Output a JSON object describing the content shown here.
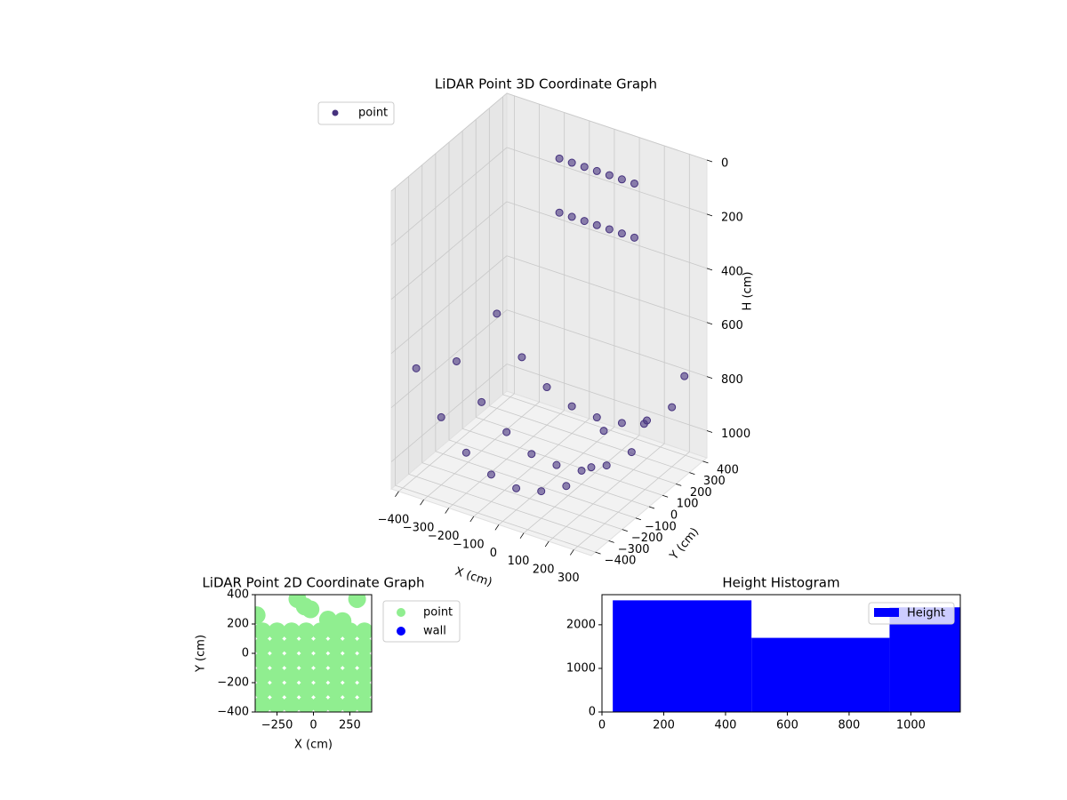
{
  "chart_data": [
    {
      "type": "scatter3d",
      "title": "LiDAR Point 3D Coordinate Graph",
      "xlabel": "X (cm)",
      "ylabel": "Y (cm)",
      "zlabel": "H (cm)",
      "legend": "upper left",
      "xlim": [
        -430,
        370
      ],
      "ylim": [
        -430,
        430
      ],
      "zlim": [
        1100,
        0
      ],
      "xticks": [
        {
          "value": -400,
          "label": "−400"
        },
        {
          "value": -300,
          "label": "−300"
        },
        {
          "value": -200,
          "label": "−200"
        },
        {
          "value": -100,
          "label": "−100"
        },
        0,
        100,
        200,
        300
      ],
      "yticks": [
        {
          "value": -400,
          "label": "−400"
        },
        {
          "value": -300,
          "label": "−300"
        },
        {
          "value": -200,
          "label": "−200"
        },
        {
          "value": -100,
          "label": "−100"
        },
        0,
        100,
        200,
        300,
        400
      ],
      "zticks": [
        0,
        200,
        400,
        600,
        800,
        1000
      ],
      "series": [
        {
          "name": "point",
          "color": "#46327e",
          "x": [
            -400,
            -300,
            -200,
            -100,
            0,
            100,
            200,
            300,
            350,
            -400,
            -300,
            -200,
            -100,
            0,
            100,
            200,
            300,
            350,
            -400,
            -300,
            -200,
            -100,
            0,
            100,
            200,
            300,
            350,
            -150,
            -100,
            -50,
            0,
            50,
            100,
            150,
            -150,
            -100,
            -50,
            0,
            50,
            100,
            150
          ],
          "y": [
            -300,
            -300,
            -300,
            -300,
            -300,
            -300,
            -300,
            -300,
            -300,
            0,
            0,
            0,
            0,
            0,
            0,
            0,
            0,
            0,
            300,
            300,
            300,
            300,
            300,
            300,
            300,
            300,
            300,
            300,
            300,
            300,
            300,
            300,
            300,
            300,
            300,
            300,
            300,
            300,
            300,
            300,
            300
          ],
          "z": [
            700,
            850,
            950,
            1000,
            1020,
            1000,
            950,
            850,
            700,
            800,
            920,
            1000,
            1050,
            1060,
            1050,
            1000,
            920,
            800,
            750,
            880,
            960,
            1000,
            1010,
            1000,
            960,
            880,
            750,
            100,
            100,
            100,
            100,
            100,
            100,
            100,
            300,
            300,
            300,
            300,
            300,
            300,
            300
          ]
        }
      ]
    },
    {
      "type": "scatter",
      "title": "LiDAR Point 2D Coordinate Graph",
      "xlabel": "X (cm)",
      "ylabel": "Y (cm)",
      "legend": "outside right",
      "xlim": [
        -400,
        400
      ],
      "ylim": [
        -400,
        400
      ],
      "xticks": [
        {
          "value": -250,
          "label": "−250"
        },
        0,
        250
      ],
      "yticks": [
        {
          "value": -400,
          "label": "−400"
        },
        {
          "value": -200,
          "label": "−200"
        },
        0,
        200,
        400
      ],
      "series": [
        {
          "name": "point",
          "color": "#90ee90",
          "x": [
            -350,
            -250,
            -150,
            -50,
            50,
            150,
            250,
            350,
            -350,
            -250,
            -150,
            -50,
            50,
            150,
            250,
            350,
            -350,
            -250,
            -150,
            -50,
            50,
            150,
            250,
            350,
            -350,
            -250,
            -150,
            -50,
            50,
            150,
            250,
            350,
            -350,
            -250,
            -150,
            -50,
            50,
            150,
            250,
            350,
            -350,
            -250,
            -150,
            -50,
            50,
            150,
            250,
            350,
            -390,
            -110,
            -60,
            -20,
            100,
            200,
            300
          ],
          "y": [
            -350,
            -350,
            -350,
            -350,
            -350,
            -350,
            -350,
            -350,
            -250,
            -250,
            -250,
            -250,
            -250,
            -250,
            -250,
            -250,
            -150,
            -150,
            -150,
            -150,
            -150,
            -150,
            -150,
            -150,
            -50,
            -50,
            -50,
            -50,
            -50,
            -50,
            -50,
            -50,
            50,
            50,
            50,
            50,
            50,
            50,
            50,
            50,
            150,
            150,
            150,
            150,
            150,
            150,
            150,
            150,
            260,
            370,
            320,
            300,
            230,
            220,
            370
          ]
        },
        {
          "name": "wall",
          "color": "#0000ff",
          "x": [],
          "y": []
        }
      ]
    },
    {
      "type": "histogram",
      "title": "Height Histogram",
      "legend": "upper right",
      "xlim": [
        0,
        1160
      ],
      "ylim": [
        0,
        2690
      ],
      "xticks": [
        0,
        200,
        400,
        600,
        800,
        1000
      ],
      "yticks": [
        0,
        1000,
        2000
      ],
      "bins": [
        35,
        484,
        931,
        1160
      ],
      "series": [
        {
          "name": "Height",
          "color": "#0000ff",
          "values": [
            2560,
            1700,
            2400
          ]
        }
      ]
    }
  ]
}
